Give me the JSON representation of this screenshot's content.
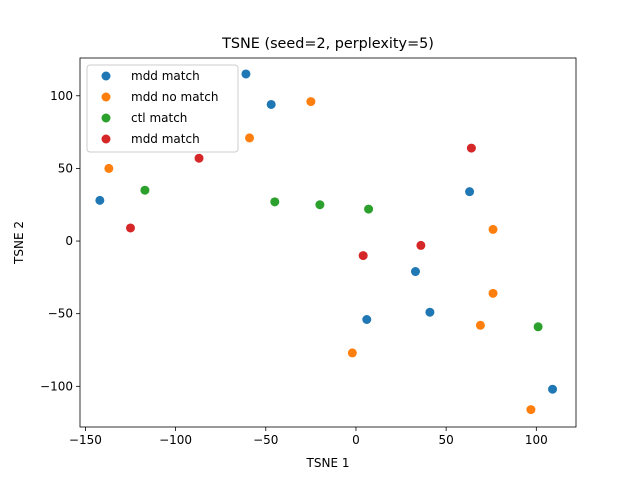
{
  "chart_data": {
    "type": "scatter",
    "title": "TSNE (seed=2, perplexity=5)",
    "xlabel": "TSNE 1",
    "ylabel": "TSNE 2",
    "xlim": [
      -153,
      122
    ],
    "ylim": [
      -128,
      126
    ],
    "xticks": [
      -150,
      -100,
      -50,
      0,
      50,
      100
    ],
    "yticks": [
      -100,
      -50,
      0,
      50,
      100
    ],
    "grid": false,
    "legend_position": "top-left",
    "series": [
      {
        "name": "mdd match",
        "color": "#1f77b4",
        "points": [
          {
            "x": -61,
            "y": 115
          },
          {
            "x": -47,
            "y": 94
          },
          {
            "x": -142,
            "y": 28
          },
          {
            "x": 63,
            "y": 34
          },
          {
            "x": 33,
            "y": -21
          },
          {
            "x": 6,
            "y": -54
          },
          {
            "x": 41,
            "y": -49
          },
          {
            "x": 109,
            "y": -102
          }
        ]
      },
      {
        "name": "mdd no match",
        "color": "#ff7f0e",
        "points": [
          {
            "x": -25,
            "y": 96
          },
          {
            "x": -59,
            "y": 71
          },
          {
            "x": -137,
            "y": 50
          },
          {
            "x": 76,
            "y": 8
          },
          {
            "x": 76,
            "y": -36
          },
          {
            "x": 69,
            "y": -58
          },
          {
            "x": -2,
            "y": -77
          },
          {
            "x": 97,
            "y": -116
          }
        ]
      },
      {
        "name": "ctl match",
        "color": "#2ca02c",
        "points": [
          {
            "x": -117,
            "y": 35
          },
          {
            "x": -45,
            "y": 27
          },
          {
            "x": -20,
            "y": 25
          },
          {
            "x": 7,
            "y": 22
          },
          {
            "x": 101,
            "y": -59
          }
        ]
      },
      {
        "name": "mdd match",
        "color": "#d62728",
        "points": [
          {
            "x": -87,
            "y": 57
          },
          {
            "x": 64,
            "y": 64
          },
          {
            "x": -125,
            "y": 9
          },
          {
            "x": 36,
            "y": -3
          },
          {
            "x": 4,
            "y": -10
          }
        ]
      }
    ]
  }
}
